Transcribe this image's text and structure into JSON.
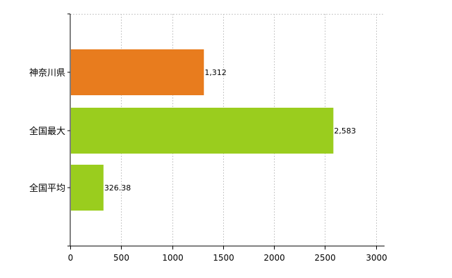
{
  "chart_data": {
    "type": "bar",
    "orientation": "horizontal",
    "categories": [
      "神奈川県",
      "全国最大",
      "全国平均"
    ],
    "values": [
      1312,
      2583,
      326.38
    ],
    "value_labels": [
      "1,312",
      "2,583",
      "326.38"
    ],
    "bar_colors": [
      "#e87c1e",
      "#9acd1e",
      "#9acd1e"
    ],
    "xlim": [
      0,
      3000
    ],
    "xticks": [
      0,
      500,
      1000,
      1500,
      2000,
      2500,
      3000
    ],
    "xtick_labels": [
      "0",
      "500",
      "1000",
      "1500",
      "2000",
      "2500",
      "3000"
    ],
    "grid": true,
    "title": "",
    "xlabel": "",
    "ylabel": ""
  }
}
